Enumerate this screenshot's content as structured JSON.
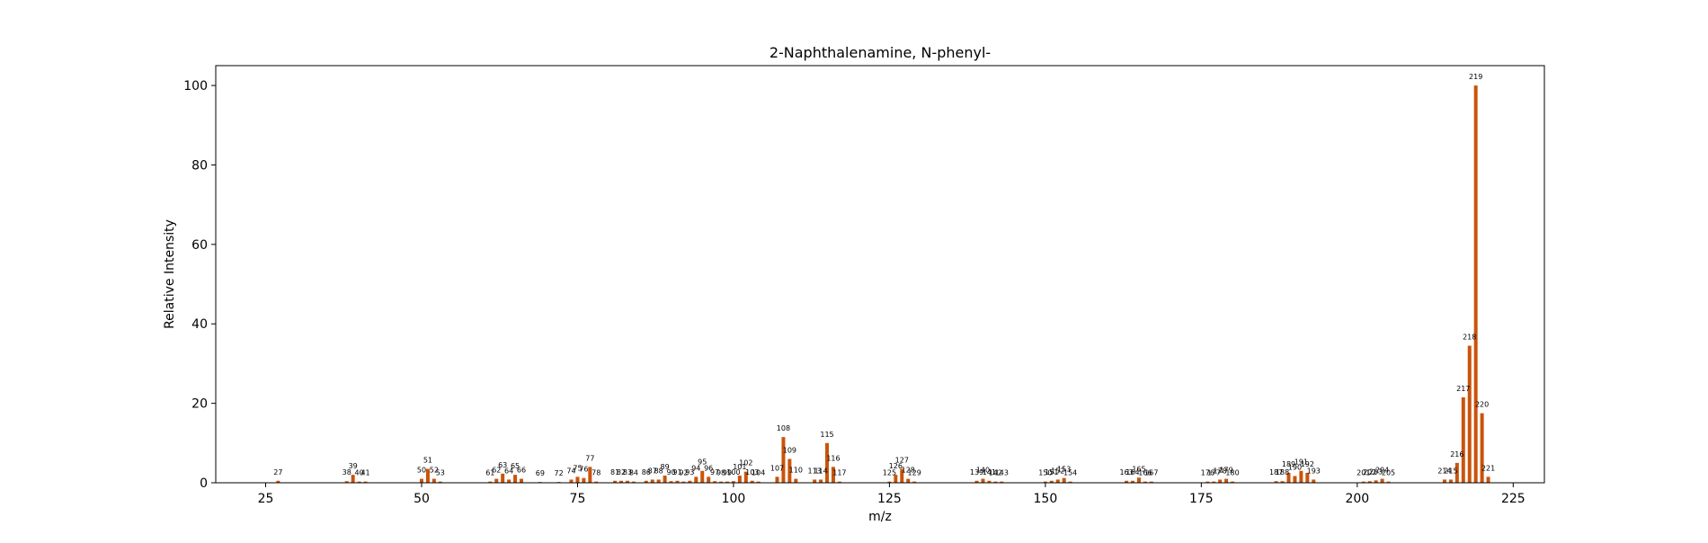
{
  "chart_data": {
    "type": "bar",
    "title": "2-Naphthalenamine, N-phenyl-",
    "xlabel": "m/z",
    "ylabel": "Relative Intensity",
    "xlim": [
      17,
      230
    ],
    "ylim": [
      0,
      105
    ],
    "xticks": [
      25,
      50,
      75,
      100,
      125,
      150,
      175,
      200,
      225
    ],
    "yticks": [
      0,
      20,
      40,
      60,
      80,
      100
    ],
    "grid": false,
    "bar_color": "#c9540a",
    "series": [
      {
        "x": [
          27,
          38,
          39,
          40,
          41,
          50,
          51,
          52,
          53,
          61,
          62,
          63,
          64,
          65,
          66,
          69,
          72,
          74,
          75,
          76,
          77,
          78,
          81,
          82,
          83,
          84,
          86,
          87,
          88,
          89,
          90,
          91,
          92,
          93,
          94,
          95,
          96,
          97,
          98,
          99,
          100,
          101,
          102,
          103,
          104,
          107,
          108,
          109,
          110,
          113,
          114,
          115,
          116,
          117,
          125,
          126,
          127,
          128,
          129,
          139,
          140,
          141,
          142,
          143,
          150,
          151,
          152,
          153,
          154,
          163,
          164,
          165,
          166,
          167,
          176,
          177,
          178,
          179,
          180,
          187,
          188,
          189,
          190,
          191,
          192,
          193,
          201,
          202,
          203,
          204,
          205,
          214,
          215,
          216,
          217,
          218,
          219,
          220,
          221
        ],
        "values": [
          0.5,
          0.4,
          2.0,
          0.3,
          0.3,
          1.0,
          3.5,
          1.0,
          0.3,
          0.3,
          1.0,
          2.3,
          0.8,
          2.0,
          1.0,
          0.2,
          0.2,
          0.8,
          1.5,
          1.2,
          4.0,
          0.3,
          0.5,
          0.5,
          0.5,
          0.3,
          0.5,
          0.8,
          0.8,
          1.8,
          0.4,
          0.5,
          0.3,
          0.5,
          1.5,
          3.0,
          1.5,
          0.4,
          0.3,
          0.3,
          0.4,
          1.8,
          2.8,
          0.5,
          0.3,
          1.5,
          11.5,
          6.0,
          1.0,
          0.8,
          0.8,
          10.0,
          4.0,
          0.3,
          0.3,
          2.0,
          3.5,
          1.0,
          0.3,
          0.5,
          1.0,
          0.5,
          0.3,
          0.3,
          0.3,
          0.5,
          0.8,
          1.2,
          0.3,
          0.5,
          0.5,
          1.3,
          0.3,
          0.3,
          0.3,
          0.3,
          0.8,
          1.0,
          0.3,
          0.4,
          0.4,
          2.5,
          1.7,
          3.0,
          2.5,
          0.8,
          0.3,
          0.4,
          0.6,
          1.0,
          0.3,
          0.8,
          0.8,
          5.0,
          21.5,
          34.5,
          100,
          17.5,
          1.5
        ]
      }
    ]
  }
}
